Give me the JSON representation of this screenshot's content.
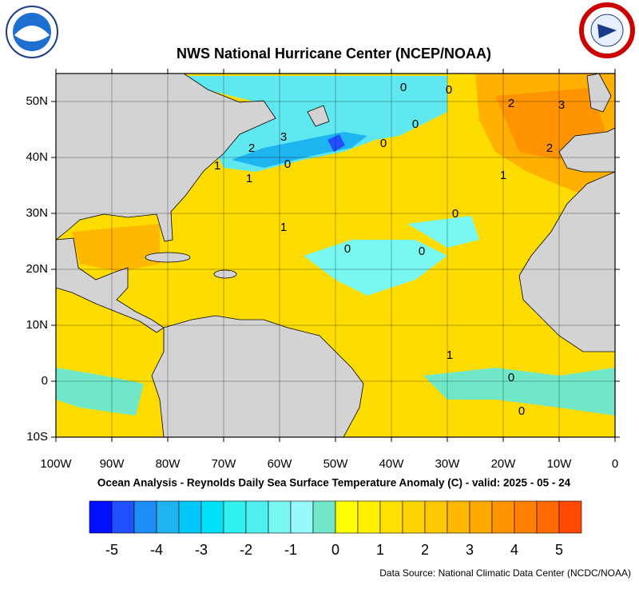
{
  "chart_data": {
    "type": "map",
    "title": "NWS National Hurricane Center (NCEP/NOAA)",
    "subtitle": "Ocean Analysis - Reynolds Daily Sea Surface Temperature Anomaly (C) - valid: 2025 - 05 - 24",
    "source": "Data Source: National Climatic Data Center (NCDC/NOAA)",
    "xlim": [
      -100,
      0
    ],
    "xticks": [
      {
        "value": -100,
        "label": "100W"
      },
      {
        "value": -90,
        "label": "90W"
      },
      {
        "value": -80,
        "label": "80W"
      },
      {
        "value": -70,
        "label": "70W"
      },
      {
        "value": -60,
        "label": "60W"
      },
      {
        "value": -50,
        "label": "50W"
      },
      {
        "value": -40,
        "label": "40W"
      },
      {
        "value": -30,
        "label": "30W"
      },
      {
        "value": -20,
        "label": "20W"
      },
      {
        "value": -10,
        "label": "10W"
      },
      0
    ],
    "ylim": [
      -10,
      55
    ],
    "yticks": [
      {
        "value": -10,
        "label": "10S"
      },
      0,
      {
        "value": 10,
        "label": "10N"
      },
      {
        "value": 20,
        "label": "20N"
      },
      {
        "value": 30,
        "label": "30N"
      },
      {
        "value": 40,
        "label": "40N"
      },
      {
        "value": 50,
        "label": "50N"
      }
    ],
    "grid": true,
    "contour_labels": [
      "2",
      "3",
      "0",
      "1",
      "1",
      "0",
      "0",
      "0",
      "0",
      "2",
      "3",
      "2",
      "1",
      "0",
      "1",
      "0",
      "0",
      "1",
      "0",
      "0"
    ],
    "colorbar": {
      "range": [
        -5.5,
        5.5
      ],
      "ticks": [
        -5,
        -4,
        -3,
        -2,
        -1,
        0,
        1,
        2,
        3,
        4,
        5
      ],
      "colors": [
        "#0010ff",
        "#2050ff",
        "#1e8cf5",
        "#1eb4f0",
        "#00c8f8",
        "#00e0f8",
        "#30f0f0",
        "#50f0f0",
        "#78f8f0",
        "#96fafa",
        "#70e8c8",
        "#ffff00",
        "#fff000",
        "#ffe000",
        "#ffd400",
        "#ffc800",
        "#ffb800",
        "#ffa800",
        "#ff9400",
        "#ff8000",
        "#ff6a00",
        "#ff4800"
      ]
    }
  }
}
